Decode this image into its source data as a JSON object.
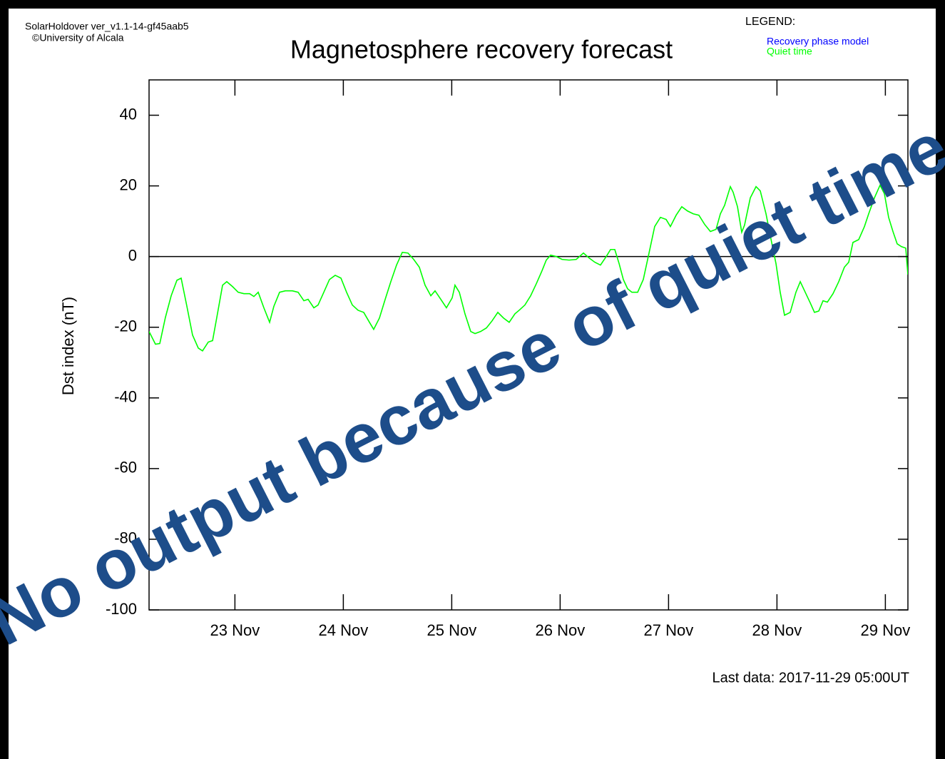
{
  "chart_data": {
    "type": "line",
    "header": [
      "SolarHoldover ver_v1.1-14-gf45aab5",
      "©University of Alcala"
    ],
    "title": "Magnetosphere recovery forecast",
    "legend": {
      "title": "LEGEND:",
      "entries": [
        {
          "name": "Recovery phase model",
          "color": "#0000ff"
        },
        {
          "name": "Quiet time",
          "color": "#00ff00"
        }
      ]
    },
    "y_label": "Dst index (nT)",
    "footer": "Last data: 2017-11-29 05:00UT",
    "watermark": "No output because of quiet time",
    "xlim": [
      22.208,
      29.208
    ],
    "xticks": [
      {
        "value": 23,
        "label": "23 Nov"
      },
      {
        "value": 24,
        "label": "24 Nov"
      },
      {
        "value": 25,
        "label": "25 Nov"
      },
      {
        "value": 26,
        "label": "26 Nov"
      },
      {
        "value": 27,
        "label": "27 Nov"
      },
      {
        "value": 28,
        "label": "28 Nov"
      },
      {
        "value": 29,
        "label": "29 Nov"
      }
    ],
    "ylim": [
      -100,
      50
    ],
    "yticks": [
      -100,
      -80,
      -60,
      -40,
      -20,
      0,
      20,
      40
    ],
    "x": [
      22.208,
      22.267,
      22.307,
      22.359,
      22.412,
      22.465,
      22.504,
      22.557,
      22.609,
      22.662,
      22.701,
      22.754,
      22.794,
      22.833,
      22.886,
      22.925,
      22.978,
      23.03,
      23.083,
      23.136,
      23.175,
      23.215,
      23.267,
      23.32,
      23.359,
      23.412,
      23.465,
      23.53,
      23.583,
      23.636,
      23.675,
      23.728,
      23.767,
      23.82,
      23.872,
      23.925,
      23.978,
      24.03,
      24.083,
      24.136,
      24.188,
      24.241,
      24.28,
      24.333,
      24.386,
      24.438,
      24.491,
      24.544,
      24.596,
      24.649,
      24.701,
      24.754,
      24.807,
      24.846,
      24.899,
      24.951,
      25.004,
      25.03,
      25.07,
      25.122,
      25.175,
      25.215,
      25.267,
      25.32,
      25.372,
      25.425,
      25.478,
      25.53,
      25.583,
      25.622,
      25.675,
      25.728,
      25.78,
      25.833,
      25.872,
      25.912,
      25.965,
      26.017,
      26.083,
      26.149,
      26.215,
      26.267,
      26.32,
      26.372,
      26.425,
      26.465,
      26.504,
      26.544,
      26.583,
      26.622,
      26.662,
      26.715,
      26.767,
      26.82,
      26.872,
      26.925,
      26.978,
      27.017,
      27.07,
      27.122,
      27.175,
      27.228,
      27.28,
      27.333,
      27.386,
      27.438,
      27.478,
      27.517,
      27.57,
      27.596,
      27.636,
      27.675,
      27.701,
      27.754,
      27.807,
      27.846,
      27.899,
      27.951,
      27.991,
      28.03,
      28.07,
      28.122,
      28.175,
      28.215,
      28.267,
      28.307,
      28.346,
      28.386,
      28.425,
      28.465,
      28.517,
      28.57,
      28.622,
      28.662,
      28.701,
      28.754,
      28.807,
      28.846,
      28.899,
      28.951,
      28.991,
      29.03,
      29.07,
      29.109,
      29.149,
      29.188,
      29.208
    ],
    "series": [
      {
        "name": "Quiet time",
        "color": "#00ff00",
        "values": [
          -21.2,
          -24.8,
          -24.6,
          -17.2,
          -11.1,
          -6.7,
          -6.1,
          -14.1,
          -22.2,
          -25.9,
          -26.7,
          -24.2,
          -23.8,
          -17.2,
          -8.1,
          -7.1,
          -8.5,
          -10.1,
          -10.5,
          -10.5,
          -11.3,
          -10.1,
          -14.5,
          -18.6,
          -14.1,
          -10.1,
          -9.7,
          -9.7,
          -10.1,
          -12.5,
          -12.1,
          -14.5,
          -13.7,
          -10.1,
          -6.5,
          -5.3,
          -6.1,
          -10.1,
          -13.7,
          -15.2,
          -15.8,
          -18.6,
          -20.6,
          -17.4,
          -12.1,
          -7.1,
          -2.4,
          1.2,
          1.0,
          -0.8,
          -3.0,
          -8.1,
          -11.1,
          -9.7,
          -12.1,
          -14.5,
          -11.7,
          -8.1,
          -10.1,
          -16.2,
          -21.2,
          -21.8,
          -21.2,
          -20.2,
          -18.2,
          -15.8,
          -17.4,
          -18.6,
          -16.2,
          -15.2,
          -13.7,
          -11.1,
          -7.7,
          -4.0,
          -1.0,
          0.4,
          0,
          -0.8,
          -1.0,
          -0.8,
          1.0,
          -0.4,
          -1.6,
          -2.4,
          0,
          2.0,
          2.0,
          -2.0,
          -6.5,
          -9.1,
          -10.1,
          -10.1,
          -6.5,
          1.0,
          8.5,
          11.1,
          10.5,
          8.5,
          11.7,
          14.1,
          12.9,
          12.1,
          11.7,
          9.1,
          7.1,
          7.7,
          12.1,
          14.5,
          19.8,
          18.2,
          14.1,
          6.9,
          8.9,
          16.6,
          19.8,
          18.6,
          12.1,
          4.0,
          -2.0,
          -10.1,
          -16.6,
          -15.8,
          -10.1,
          -7.1,
          -10.5,
          -13.1,
          -15.8,
          -15.4,
          -12.5,
          -12.9,
          -10.5,
          -7.1,
          -3.0,
          -1.6,
          4.0,
          4.8,
          8.5,
          12.1,
          16.6,
          20.2,
          17.8,
          11.1,
          7.1,
          3.6,
          2.8,
          2.4,
          -5.1
        ]
      }
    ]
  }
}
